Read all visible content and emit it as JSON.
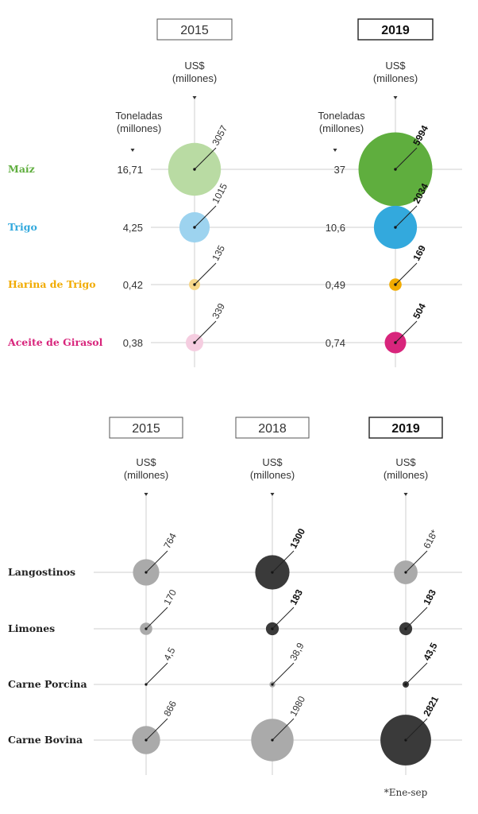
{
  "chart_data": [
    {
      "type": "bubble",
      "years": [
        {
          "label": "2015",
          "bold": false
        },
        {
          "label": "2019",
          "bold": true
        }
      ],
      "value_header": [
        "US$",
        "(millones)"
      ],
      "tons_header": [
        "Toneladas",
        "(millones)"
      ],
      "categories": [
        {
          "name": "Maíz",
          "color": "#5fae3e",
          "light_color": "#b9dba3",
          "tons": [
            "16,71",
            "37"
          ],
          "usd": [
            3057,
            5994
          ],
          "usd_labels": [
            "3057",
            "5994"
          ]
        },
        {
          "name": "Trigo",
          "color": "#33a9dd",
          "light_color": "#9dd3ef",
          "tons": [
            "4,25",
            "10,6"
          ],
          "usd": [
            1015,
            2034
          ],
          "usd_labels": [
            "1015",
            "2034"
          ]
        },
        {
          "name": "Harina de Trigo",
          "color": "#f1ab00",
          "light_color": "#f7d78a",
          "tons": [
            "0,42",
            "0,49"
          ],
          "usd": [
            135,
            169
          ],
          "usd_labels": [
            "135",
            "169"
          ]
        },
        {
          "name": "Aceite de Girasol",
          "color": "#d8257c",
          "light_color": "#f5cde0",
          "tons": [
            "0,38",
            "0,74"
          ],
          "usd": [
            339,
            504
          ],
          "usd_labels": [
            "339",
            "504"
          ]
        }
      ]
    },
    {
      "type": "bubble",
      "years": [
        {
          "label": "2015",
          "bold": false
        },
        {
          "label": "2018",
          "bold": false
        },
        {
          "label": "2019",
          "bold": true
        }
      ],
      "value_header": [
        "US$",
        "(millones)"
      ],
      "categories": [
        {
          "name": "Langostinos",
          "usd": [
            764,
            1300,
            618
          ],
          "usd_labels": [
            "764",
            "1300",
            "618*"
          ],
          "colors": [
            "#aaaaaa",
            "#3a3a3a",
            "#aaaaaa"
          ],
          "bold": [
            false,
            true,
            false
          ]
        },
        {
          "name": "Limones",
          "usd": [
            170,
            183,
            183
          ],
          "usd_labels": [
            "170",
            "183",
            "183"
          ],
          "colors": [
            "#aaaaaa",
            "#3a3a3a",
            "#3a3a3a"
          ],
          "bold": [
            false,
            true,
            true
          ]
        },
        {
          "name": "Carne Porcina",
          "usd": [
            4.5,
            38.9,
            43.5
          ],
          "usd_labels": [
            "4,5",
            "38,9",
            "43,5"
          ],
          "colors": [
            "#aaaaaa",
            "#aaaaaa",
            "#3a3a3a"
          ],
          "bold": [
            false,
            false,
            true
          ]
        },
        {
          "name": "Carne Bovina",
          "usd": [
            866,
            1980,
            2821
          ],
          "usd_labels": [
            "866",
            "1980",
            "2821"
          ],
          "colors": [
            "#aaaaaa",
            "#aaaaaa",
            "#3a3a3a"
          ],
          "bold": [
            false,
            false,
            true
          ]
        }
      ],
      "footnote": "*Ene-sep"
    }
  ]
}
